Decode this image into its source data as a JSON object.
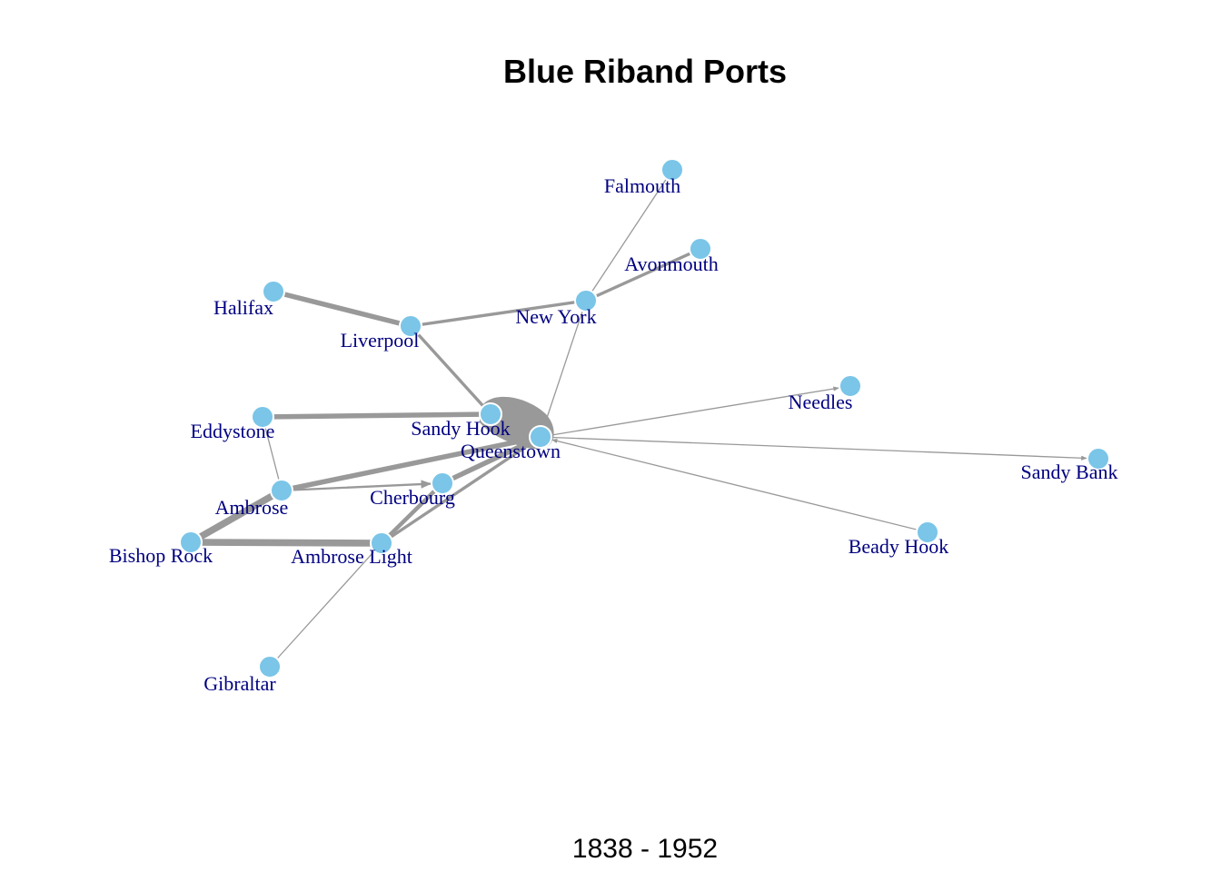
{
  "title": "Blue Riband Ports",
  "subtitle": "1838 - 1952",
  "colors": {
    "node_fill": "#7ac5e8",
    "node_stroke": "#ffffff",
    "edge": "#999999",
    "label": "#000080"
  },
  "nodes": [
    {
      "id": "falmouth",
      "label": "Falmouth"
    },
    {
      "id": "avonmouth",
      "label": "Avonmouth"
    },
    {
      "id": "halifax",
      "label": "Halifax"
    },
    {
      "id": "new-york",
      "label": "New York"
    },
    {
      "id": "liverpool",
      "label": "Liverpool"
    },
    {
      "id": "needles",
      "label": "Needles"
    },
    {
      "id": "eddystone",
      "label": "Eddystone"
    },
    {
      "id": "sandy-hook",
      "label": "Sandy Hook"
    },
    {
      "id": "queenstown",
      "label": "Queenstown"
    },
    {
      "id": "sandy-bank",
      "label": "Sandy Bank"
    },
    {
      "id": "ambrose",
      "label": "Ambrose"
    },
    {
      "id": "cherbourg",
      "label": "Cherbourg"
    },
    {
      "id": "beady-hook",
      "label": "Beady Hook"
    },
    {
      "id": "bishop-rock",
      "label": "Bishop Rock"
    },
    {
      "id": "ambrose-light",
      "label": "Ambrose Light"
    },
    {
      "id": "gibraltar",
      "label": "Gibraltar"
    }
  ],
  "edges": [
    {
      "source": "halifax",
      "target": "liverpool",
      "weight": 5
    },
    {
      "source": "liverpool",
      "target": "new-york",
      "weight": 3
    },
    {
      "source": "new-york",
      "target": "avonmouth",
      "weight": 3
    },
    {
      "source": "new-york",
      "target": "falmouth",
      "weight": 1
    },
    {
      "source": "liverpool",
      "target": "sandy-hook",
      "weight": 3
    },
    {
      "source": "queenstown",
      "target": "new-york",
      "weight": 1
    },
    {
      "source": "eddystone",
      "target": "sandy-hook",
      "weight": 5
    },
    {
      "source": "eddystone",
      "target": "ambrose",
      "weight": 1
    },
    {
      "source": "sandy-hook",
      "target": "queenstown",
      "weight": 10
    },
    {
      "source": "queenstown",
      "target": "needles",
      "weight": 1,
      "arrow": true
    },
    {
      "source": "queenstown",
      "target": "sandy-bank",
      "weight": 1,
      "arrow": true
    },
    {
      "source": "beady-hook",
      "target": "queenstown",
      "weight": 1,
      "arrow": true
    },
    {
      "source": "ambrose",
      "target": "queenstown",
      "weight": 5
    },
    {
      "source": "ambrose",
      "target": "cherbourg",
      "weight": 2,
      "arrow": true
    },
    {
      "source": "cherbourg",
      "target": "queenstown",
      "weight": 5
    },
    {
      "source": "cherbourg",
      "target": "ambrose-light",
      "weight": 4
    },
    {
      "source": "ambrose-light",
      "target": "queenstown",
      "weight": 3
    },
    {
      "source": "bishop-rock",
      "target": "ambrose",
      "weight": 7
    },
    {
      "source": "bishop-rock",
      "target": "ambrose-light",
      "weight": 7
    },
    {
      "source": "gibraltar",
      "target": "ambrose-light",
      "weight": 1
    }
  ]
}
